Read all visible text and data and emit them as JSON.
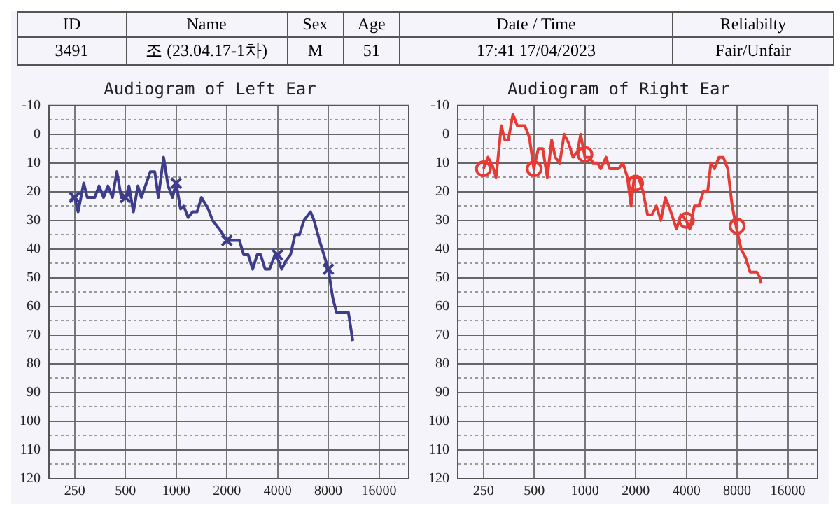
{
  "chart_data": [
    {
      "type": "other",
      "categories": [
        "ID",
        "Name",
        "Sex",
        "Age",
        "Date / Time",
        "Reliabilty"
      ],
      "annotations": [
        "3491",
        "조 (23.04.17-1차)",
        "M",
        "51",
        "17:41 17/04/2023",
        "Fair/Unfair"
      ]
    },
    {
      "type": "line",
      "title": "Audiogram of Left Ear",
      "log": "x",
      "grid": true,
      "legend": false,
      "xlim": [
        176,
        24000
      ],
      "ylim": [
        120,
        -10
      ],
      "xticks": [
        250,
        500,
        1000,
        2000,
        4000,
        8000,
        16000
      ],
      "yticks": [
        -10,
        {
          "value": -5,
          "label": null
        },
        0,
        {
          "value": 5,
          "label": null
        },
        10,
        {
          "value": 15,
          "label": null
        },
        20,
        {
          "value": 25,
          "label": null
        },
        30,
        {
          "value": 35,
          "label": null
        },
        40,
        {
          "value": 45,
          "label": null
        },
        50,
        {
          "value": 55,
          "label": null
        },
        60,
        {
          "value": 65,
          "label": null
        },
        70,
        {
          "value": 75,
          "label": null
        },
        80,
        {
          "value": 85,
          "label": null
        },
        90,
        {
          "value": 95,
          "label": null
        },
        100,
        {
          "value": 105,
          "label": null
        },
        110,
        {
          "value": 115,
          "label": null
        },
        120
      ],
      "series": [
        {
          "type": "line",
          "color": "#3d3d8c",
          "marker": "none",
          "x": [
            235,
            250,
            262,
            283,
            297,
            329,
            349,
            371,
            394,
            419,
            445,
            473,
            503,
            525,
            558,
            593,
            622,
            703,
            747,
            784,
            843,
            896,
            952,
            1000,
            1063,
            1109,
            1178,
            1253,
            1331,
            1414,
            1550,
            1646,
            1804,
            2000,
            2099,
            2373,
            2520,
            2678,
            2846,
            3024,
            3175,
            3374,
            3585,
            3855,
            4050,
            4226,
            4490,
            4770,
            5070,
            5390,
            5730,
            6270,
            6580,
            7090,
            8000,
            8500,
            8930,
            10520,
            11170
          ],
          "values": [
            23,
            22,
            27,
            17,
            22,
            22,
            18,
            22,
            18,
            22,
            13,
            22,
            22,
            18,
            27,
            18,
            22,
            13,
            13,
            22,
            8,
            18,
            22,
            17,
            26,
            25,
            29,
            27,
            27,
            22,
            26,
            30,
            33,
            37,
            37,
            37,
            42,
            42,
            47,
            42,
            42,
            47,
            47,
            42,
            44,
            47,
            44,
            42,
            35,
            35,
            30,
            27,
            30,
            37,
            47,
            57,
            62,
            62,
            72
          ]
        },
        {
          "type": "scatter",
          "color": "#3d3d8c",
          "marker": "cross",
          "x": [
            250,
            500,
            1000,
            2000,
            4000,
            8000
          ],
          "values": [
            22,
            22,
            17,
            37,
            42,
            47
          ]
        }
      ]
    },
    {
      "type": "line",
      "title": "Audiogram of Right Ear",
      "log": "x",
      "grid": true,
      "legend": false,
      "xlim": [
        176,
        24000
      ],
      "ylim": [
        120,
        -10
      ],
      "xticks": [
        250,
        500,
        1000,
        2000,
        4000,
        8000,
        16000
      ],
      "yticks": [
        -10,
        {
          "value": -5,
          "label": null
        },
        0,
        {
          "value": 5,
          "label": null
        },
        10,
        {
          "value": 15,
          "label": null
        },
        20,
        {
          "value": 25,
          "label": null
        },
        30,
        {
          "value": 35,
          "label": null
        },
        40,
        {
          "value": 45,
          "label": null
        },
        50,
        {
          "value": 55,
          "label": null
        },
        60,
        {
          "value": 65,
          "label": null
        },
        70,
        {
          "value": 75,
          "label": null
        },
        80,
        {
          "value": 85,
          "label": null
        },
        90,
        {
          "value": 95,
          "label": null
        },
        100,
        {
          "value": 105,
          "label": null
        },
        110,
        {
          "value": 115,
          "label": null
        },
        120
      ],
      "series": [
        {
          "type": "line",
          "color": "#e83a35",
          "marker": "none",
          "x": [
            250,
            266,
            283,
            297,
            319,
            335,
            351,
            374,
            397,
            440,
            468,
            497,
            529,
            562,
            598,
            635,
            667,
            709,
            753,
            800,
            850,
            904,
            943,
            1000,
            1065,
            1118,
            1189,
            1241,
            1335,
            1401,
            1583,
            1682,
            1787,
            1877,
            1960,
            2082,
            2213,
            2352,
            2500,
            2655,
            2822,
            3000,
            3190,
            3494,
            3713,
            3995,
            4195,
            4460,
            4740,
            5035,
            5350,
            5590,
            5865,
            6235,
            6626,
            7040,
            7480,
            7950,
            8450,
            8980,
            9550,
            10460,
            10920,
            11120
          ],
          "values": [
            12,
            8,
            11,
            15,
            -3,
            2,
            2,
            -7,
            -3,
            -3,
            1,
            12,
            5,
            5,
            15,
            2,
            8,
            10,
            0,
            3,
            8,
            6,
            0,
            8,
            8,
            10,
            10,
            12,
            8,
            12,
            12,
            10,
            15,
            25,
            15,
            15,
            20,
            28,
            28,
            25,
            30,
            22,
            26,
            33,
            28,
            30,
            33,
            25,
            25,
            20,
            20,
            10,
            12,
            8,
            8,
            12,
            25,
            33,
            40,
            43,
            48,
            48,
            50,
            52
          ]
        },
        {
          "type": "scatter",
          "color": "#e83a35",
          "marker": "circle",
          "x": [
            250,
            500,
            1000,
            2000,
            4000,
            8000
          ],
          "values": [
            12,
            12,
            7,
            17,
            30,
            32
          ]
        }
      ]
    }
  ]
}
